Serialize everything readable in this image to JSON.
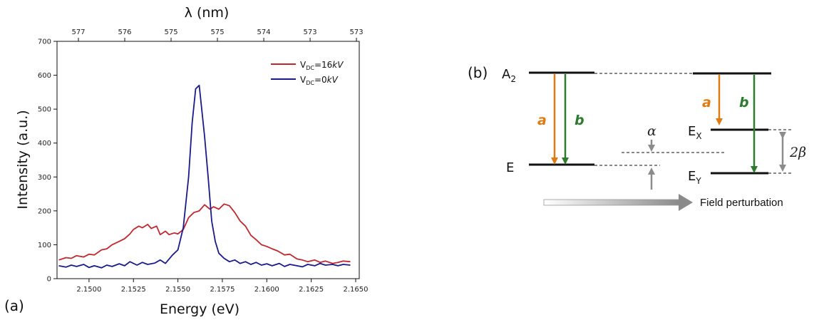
{
  "panel_a": {
    "label": "(a)",
    "top_axis_title": "λ (nm)",
    "top_ticks": [
      "577",
      "576",
      "575",
      "575",
      "574",
      "573",
      "573"
    ],
    "legend": [
      {
        "prefix": "V",
        "sub": "DC",
        "suffix": "=16",
        "unit": "kV",
        "color": "#c0282f"
      },
      {
        "prefix": "V",
        "sub": "DC",
        "suffix": "=0",
        "unit": "kV",
        "color": "#1a1a8c"
      }
    ]
  },
  "chart_data": {
    "type": "line",
    "xlabel": "Energy (eV)",
    "ylabel": "Intensity (a.u.)",
    "xlim": [
      2.1482,
      2.1652
    ],
    "ylim": [
      0,
      700
    ],
    "xticks": [
      2.15,
      2.1525,
      2.155,
      2.1575,
      2.16,
      2.1625,
      2.165
    ],
    "xtick_labels": [
      "2.1500",
      "2.1525",
      "2.1550",
      "2.1575",
      "2.1600",
      "2.1625",
      "2.1650"
    ],
    "yticks": [
      0,
      100,
      200,
      300,
      400,
      500,
      600,
      700
    ],
    "grid": false,
    "legend_position": "top-right",
    "series": [
      {
        "name": "VDC=16kV",
        "color": "#c0282f",
        "x": [
          2.1483,
          2.1487,
          2.149,
          2.1493,
          2.1497,
          2.15,
          2.1503,
          2.1507,
          2.151,
          2.1513,
          2.1517,
          2.152,
          2.1523,
          2.1525,
          2.1528,
          2.153,
          2.1533,
          2.1535,
          2.1538,
          2.154,
          2.1543,
          2.1545,
          2.1548,
          2.155,
          2.1553,
          2.1556,
          2.1559,
          2.1562,
          2.1565,
          2.1568,
          2.157,
          2.1573,
          2.1576,
          2.1579,
          2.1582,
          2.1585,
          2.1588,
          2.1591,
          2.1594,
          2.1597,
          2.16,
          2.1603,
          2.1606,
          2.161,
          2.1613,
          2.1617,
          2.162,
          2.1623,
          2.1627,
          2.163,
          2.1633,
          2.1637,
          2.164,
          2.1643,
          2.1647
        ],
        "values": [
          55,
          62,
          60,
          68,
          64,
          72,
          70,
          85,
          88,
          100,
          110,
          118,
          132,
          145,
          155,
          150,
          160,
          148,
          155,
          130,
          140,
          130,
          135,
          132,
          145,
          180,
          195,
          200,
          218,
          205,
          212,
          205,
          220,
          215,
          195,
          170,
          155,
          128,
          115,
          100,
          95,
          88,
          82,
          70,
          72,
          58,
          55,
          50,
          55,
          48,
          52,
          45,
          48,
          52,
          50
        ]
      },
      {
        "name": "VDC=0kV",
        "color": "#1a1a8c",
        "x": [
          2.1483,
          2.1487,
          2.149,
          2.1493,
          2.1497,
          2.15,
          2.1503,
          2.1507,
          2.151,
          2.1513,
          2.1517,
          2.152,
          2.1523,
          2.1527,
          2.153,
          2.1533,
          2.1537,
          2.154,
          2.1543,
          2.1547,
          2.155,
          2.1553,
          2.1556,
          2.1558,
          2.156,
          2.1562,
          2.1563,
          2.1565,
          2.1567,
          2.1569,
          2.1571,
          2.1573,
          2.1576,
          2.1579,
          2.1582,
          2.1585,
          2.1588,
          2.1591,
          2.1594,
          2.1597,
          2.16,
          2.1603,
          2.1607,
          2.161,
          2.1613,
          2.1617,
          2.162,
          2.1623,
          2.1627,
          2.163,
          2.1633,
          2.1637,
          2.164,
          2.1643,
          2.1647
        ],
        "values": [
          38,
          34,
          40,
          36,
          42,
          33,
          38,
          32,
          40,
          36,
          44,
          38,
          50,
          40,
          48,
          42,
          46,
          55,
          45,
          70,
          85,
          150,
          300,
          460,
          560,
          570,
          520,
          420,
          300,
          170,
          110,
          75,
          60,
          50,
          55,
          45,
          50,
          42,
          48,
          40,
          44,
          38,
          45,
          36,
          42,
          38,
          35,
          42,
          38,
          45,
          40,
          42,
          38,
          42,
          40
        ]
      }
    ]
  },
  "panel_b": {
    "label": "(b)",
    "levels": {
      "A": "A",
      "A_sub": "2",
      "E": "E",
      "EX": "E",
      "EX_sub": "X",
      "EY": "E",
      "EY_sub": "Y"
    },
    "arrow_labels": {
      "a": "a",
      "b": "b",
      "alpha": "α",
      "two_beta": "2β"
    },
    "colors": {
      "a": "#e07a12",
      "b": "#2e7a2e",
      "gray": "#8c8c8c"
    },
    "field_label": "Field perturbation"
  }
}
